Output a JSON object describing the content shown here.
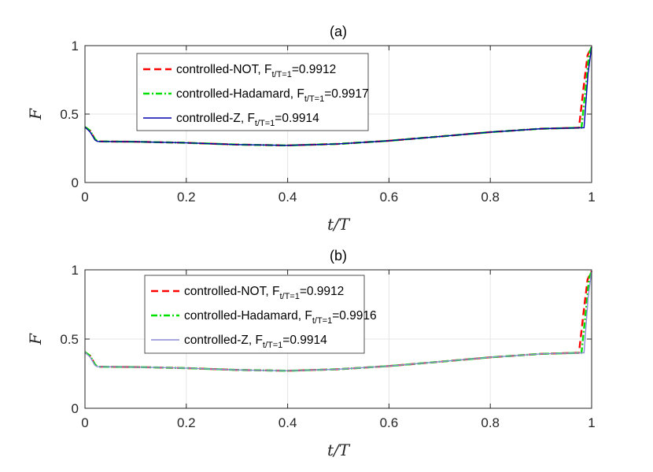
{
  "chart_data": [
    {
      "type": "line",
      "title": "(a)",
      "xlabel": "t/T",
      "ylabel": "F",
      "xlim": [
        0,
        1
      ],
      "ylim": [
        0,
        1
      ],
      "grid": true,
      "x_ticks": [
        "0",
        "0.2",
        "0.4",
        "0.6",
        "0.8",
        "1"
      ],
      "y_ticks": [
        "0",
        "0.5",
        "1"
      ],
      "legend_position": "top-left",
      "series": [
        {
          "name": "controlled-NOT",
          "fidelity_label": "=0.9912",
          "subscript": "t/T=1",
          "color": "#ff0000",
          "style": "dashed",
          "x": [
            0,
            0.01,
            0.02,
            0.025,
            0.1,
            0.2,
            0.3,
            0.4,
            0.5,
            0.6,
            0.7,
            0.8,
            0.9,
            0.97,
            0.975,
            0.985,
            0.992,
            1.0
          ],
          "y": [
            0.405,
            0.38,
            0.315,
            0.3,
            0.298,
            0.29,
            0.277,
            0.271,
            0.282,
            0.305,
            0.336,
            0.368,
            0.393,
            0.4,
            0.4,
            0.72,
            0.93,
            0.9912
          ]
        },
        {
          "name": "controlled-Hadamard",
          "fidelity_label": "=0.9917",
          "subscript": "t/T=1",
          "color": "#00e000",
          "style": "dashdot",
          "x": [
            0,
            0.01,
            0.02,
            0.025,
            0.1,
            0.2,
            0.3,
            0.4,
            0.5,
            0.6,
            0.7,
            0.8,
            0.9,
            0.975,
            0.98,
            0.99,
            0.995,
            1.0
          ],
          "y": [
            0.405,
            0.38,
            0.315,
            0.3,
            0.298,
            0.29,
            0.277,
            0.271,
            0.282,
            0.305,
            0.336,
            0.368,
            0.393,
            0.4,
            0.4,
            0.75,
            0.94,
            0.9917
          ]
        },
        {
          "name": "controlled-Z",
          "fidelity_label": "=0.9914",
          "subscript": "t/T=1",
          "color": "#0000b0",
          "style": "solid",
          "x": [
            0,
            0.01,
            0.02,
            0.025,
            0.1,
            0.2,
            0.3,
            0.4,
            0.5,
            0.6,
            0.7,
            0.8,
            0.9,
            0.98,
            0.985,
            0.993,
            1.0
          ],
          "y": [
            0.405,
            0.37,
            0.31,
            0.3,
            0.298,
            0.29,
            0.277,
            0.271,
            0.282,
            0.305,
            0.336,
            0.368,
            0.393,
            0.4,
            0.4,
            0.8,
            0.9914
          ]
        }
      ]
    },
    {
      "type": "line",
      "title": "(b)",
      "xlabel": "t/T",
      "ylabel": "F",
      "xlim": [
        0,
        1
      ],
      "ylim": [
        0,
        1
      ],
      "grid": true,
      "x_ticks": [
        "0",
        "0.2",
        "0.4",
        "0.6",
        "0.8",
        "1"
      ],
      "y_ticks": [
        "0",
        "0.5",
        "1"
      ],
      "legend_position": "top-center",
      "series": [
        {
          "name": "controlled-NOT",
          "fidelity_label": "=0.9912",
          "subscript": "t/T=1",
          "color": "#ff0000",
          "style": "dashed",
          "x": [
            0,
            0.01,
            0.02,
            0.025,
            0.1,
            0.2,
            0.3,
            0.4,
            0.5,
            0.6,
            0.7,
            0.8,
            0.9,
            0.97,
            0.975,
            0.985,
            0.992,
            1.0
          ],
          "y": [
            0.405,
            0.38,
            0.315,
            0.3,
            0.298,
            0.29,
            0.277,
            0.271,
            0.282,
            0.305,
            0.336,
            0.368,
            0.393,
            0.4,
            0.4,
            0.72,
            0.93,
            0.9912
          ]
        },
        {
          "name": "controlled-Hadamard",
          "fidelity_label": "=0.9916",
          "subscript": "t/T=1",
          "color": "#00e000",
          "style": "dashdot",
          "x": [
            0,
            0.01,
            0.02,
            0.025,
            0.1,
            0.2,
            0.3,
            0.4,
            0.5,
            0.6,
            0.7,
            0.8,
            0.9,
            0.975,
            0.98,
            0.99,
            0.995,
            1.0
          ],
          "y": [
            0.405,
            0.38,
            0.315,
            0.3,
            0.298,
            0.29,
            0.277,
            0.271,
            0.282,
            0.305,
            0.336,
            0.368,
            0.393,
            0.4,
            0.4,
            0.75,
            0.94,
            0.9916
          ]
        },
        {
          "name": "controlled-Z",
          "fidelity_label": "=0.9914",
          "subscript": "t/T=1",
          "color": "#8c8cd8",
          "style": "solid",
          "x": [
            0,
            0.01,
            0.02,
            0.025,
            0.1,
            0.2,
            0.3,
            0.4,
            0.5,
            0.6,
            0.7,
            0.8,
            0.9,
            0.98,
            0.985,
            0.993,
            1.0
          ],
          "y": [
            0.405,
            0.37,
            0.31,
            0.3,
            0.298,
            0.29,
            0.277,
            0.271,
            0.282,
            0.305,
            0.336,
            0.368,
            0.393,
            0.4,
            0.4,
            0.8,
            0.9914
          ]
        }
      ]
    }
  ]
}
